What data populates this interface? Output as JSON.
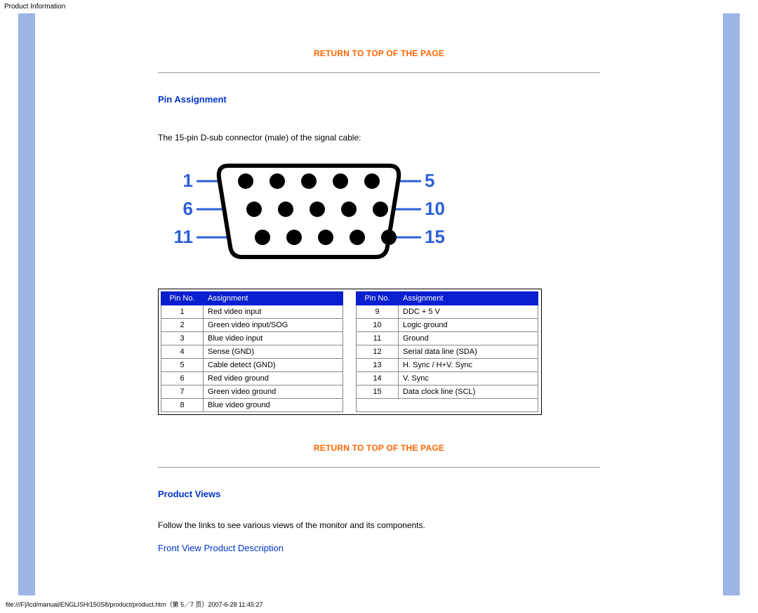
{
  "header": {
    "title": "Product Information"
  },
  "links": {
    "return_top": "RETURN TO TOP OF THE PAGE",
    "front_view": "Front View Product Description"
  },
  "sections": {
    "pin_assignment": {
      "heading": "Pin Assignment",
      "intro": "The 15-pin D-sub connector (male) of the signal cable:"
    },
    "product_views": {
      "heading": "Product Views",
      "intro": "Follow the links to see various views of the monitor and its components."
    }
  },
  "connector_diagram": {
    "type": "diagram",
    "label_color": "#2b5fd6",
    "outline_color": "#000000",
    "pin_fill": "#000000",
    "background": "#ffffff",
    "left_labels": [
      "1",
      "6",
      "11"
    ],
    "right_labels": [
      "5",
      "10",
      "15"
    ],
    "label_fontsize": 26,
    "label_fontweight": "bold",
    "line_width": 3,
    "rows": 3,
    "cols": 5,
    "pin_radius": 11
  },
  "pin_table": {
    "type": "table",
    "header_bg": "#0a1fcf",
    "header_color": "#ffffff",
    "cell_border": "#888888",
    "columns": [
      "Pin No.",
      "Assignment"
    ],
    "left_rows": [
      [
        "1",
        "Red video input"
      ],
      [
        "2",
        "Green video input/SOG"
      ],
      [
        "3",
        "Blue video input"
      ],
      [
        "4",
        "Sense (GND)"
      ],
      [
        "5",
        "Cable detect (GND)"
      ],
      [
        "6",
        "Red video ground"
      ],
      [
        "7",
        "Green video ground"
      ],
      [
        "8",
        "Blue video ground"
      ]
    ],
    "right_rows": [
      [
        "9",
        "DDC + 5 V"
      ],
      [
        "10",
        "Logic ground"
      ],
      [
        "11",
        "Ground"
      ],
      [
        "12",
        "Serial data line (SDA)"
      ],
      [
        "13",
        "H. Sync / H+V. Sync"
      ],
      [
        "14",
        "V. Sync"
      ],
      [
        "15",
        "Data clock line (SCL)"
      ]
    ]
  },
  "footer": {
    "path": "file:///F|/lcd/manual/ENGLISH/150S8/product/product.htm（第 5／7 页）2007-6-28 11:45:27"
  }
}
